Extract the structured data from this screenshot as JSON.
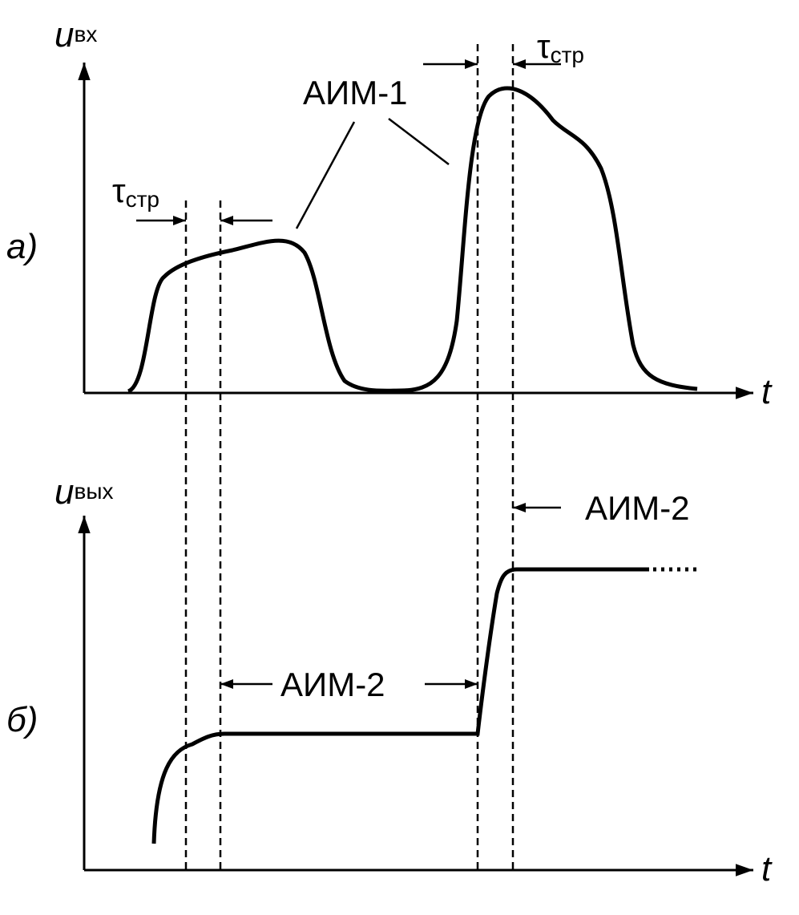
{
  "panels": [
    {
      "label": "а)",
      "y_axis": {
        "symbol": "u",
        "subscript": "вх"
      },
      "x_axis": "t",
      "annotations": [
        {
          "symbol": "τ",
          "subscript": "стр"
        },
        {
          "symbol": "τ",
          "subscript": "стр"
        },
        {
          "text": "АИМ-1"
        }
      ]
    },
    {
      "label": "б)",
      "y_axis": {
        "symbol": "u",
        "subscript": "вых"
      },
      "x_axis": "t",
      "annotations": [
        {
          "text": "АИМ-2"
        },
        {
          "text": "АИМ-2"
        }
      ]
    }
  ]
}
